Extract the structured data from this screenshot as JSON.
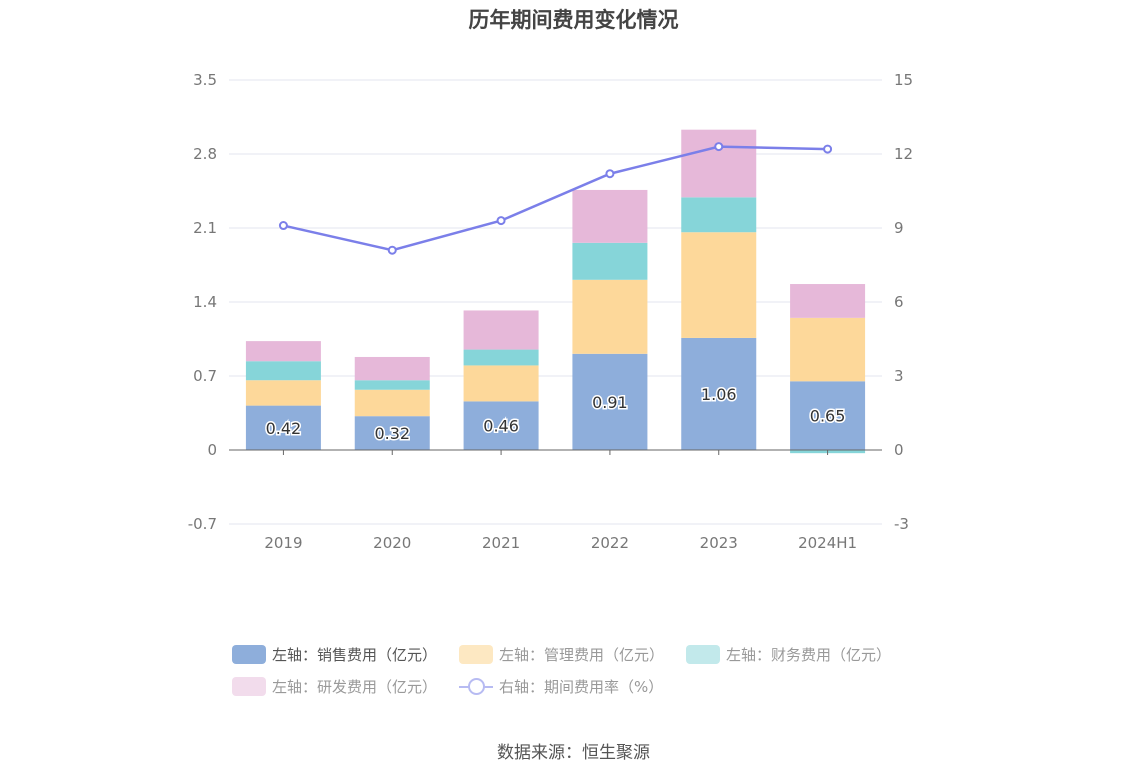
{
  "title": "历年期间费用变化情况",
  "source": "数据来源：恒生聚源",
  "chart_data": {
    "type": "bar",
    "stacked": true,
    "categories": [
      "2019",
      "2020",
      "2021",
      "2022",
      "2023",
      "2024H1"
    ],
    "left_axis": {
      "ticks": [
        "3.5",
        "2.8",
        "2.1",
        "1.4",
        "0.7",
        "0",
        "-0.7"
      ],
      "min": -0.7,
      "max": 3.5
    },
    "right_axis": {
      "ticks": [
        "15",
        "12",
        "9",
        "6",
        "3",
        "0",
        "-3"
      ],
      "min": -3,
      "max": 15
    },
    "series": [
      {
        "name": "左轴：销售费用（亿元）",
        "color": "#8eaedb",
        "values": [
          0.42,
          0.32,
          0.46,
          0.91,
          1.06,
          0.65
        ],
        "data_labels": [
          "0.42",
          "0.32",
          "0.46",
          "0.91",
          "1.06",
          "0.65"
        ]
      },
      {
        "name": "左轴：管理费用（亿元）",
        "color": "#fdd89a",
        "values": [
          0.24,
          0.25,
          0.34,
          0.7,
          1.0,
          0.6
        ]
      },
      {
        "name": "左轴：财务费用（亿元）",
        "color": "#86d5d9",
        "values": [
          0.18,
          0.09,
          0.15,
          0.35,
          0.33,
          -0.03
        ]
      },
      {
        "name": "左轴：研发费用（亿元）",
        "color": "#e6b8d9",
        "values": [
          0.19,
          0.22,
          0.37,
          0.5,
          0.64,
          0.32
        ]
      },
      {
        "name": "右轴：期间费用率（%）",
        "type": "line",
        "axis": "right",
        "color": "#7b7fe9",
        "values": [
          9.1,
          8.1,
          9.3,
          11.2,
          12.3,
          12.2
        ]
      }
    ],
    "grid": true,
    "legend_position": "bottom"
  }
}
